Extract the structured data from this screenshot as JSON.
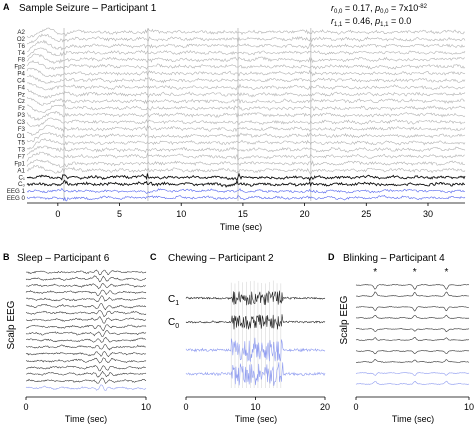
{
  "chart_data": [
    {
      "panel": "A",
      "type": "line",
      "title": "Sample Seizure – Participant 1",
      "xlabel": "Time (sec)",
      "xlim": [
        -2.5,
        33
      ],
      "xticks": [
        0,
        5,
        10,
        15,
        20,
        25,
        30
      ],
      "channels": [
        "A2",
        "O2",
        "T6",
        "T4",
        "F8",
        "Fp2",
        "P4",
        "C4",
        "F4",
        "Pz",
        "Cz",
        "Fz",
        "P3",
        "C3",
        "F3",
        "O1",
        "T5",
        "T3",
        "F7",
        "Fp1",
        "A1",
        "C₁",
        "C₀",
        "EEG 1",
        "EEG 0"
      ],
      "model_channels": [
        "C₁",
        "C₀"
      ],
      "eeg_channels": [
        "EEG 1",
        "EEG 0"
      ],
      "event_lines_x": [
        0.5,
        7.3,
        14.6,
        20.5
      ],
      "stats": [
        "r0,0 = 0.17, p0,0 = 7x10-82",
        "r1,1 = 0.46, p1,1 = 0.0"
      ]
    },
    {
      "panel": "B",
      "type": "line",
      "title": "Sleep – Participant 6",
      "ylabel": "Scalp EEG",
      "xlabel": "Time (sec)",
      "xlim": [
        0,
        10
      ],
      "xticks": [
        0,
        10
      ],
      "n_traces": 18
    },
    {
      "panel": "C",
      "type": "line",
      "title": "Chewing – Participant 2",
      "xlabel": "Time (sec)",
      "xlim": [
        0,
        20
      ],
      "xticks": [
        0,
        10,
        20
      ],
      "series_labels": [
        "C₁",
        "C₀"
      ],
      "burst_range": [
        6.5,
        14
      ]
    },
    {
      "panel": "D",
      "type": "line",
      "title": "Blinking – Participant 4",
      "ylabel": "Scalp EEG",
      "xlabel": "Time (sec)",
      "xlim": [
        0,
        10
      ],
      "xticks": [
        0,
        10
      ],
      "blink_times": [
        1.7,
        5.2,
        8.0
      ],
      "blink_marker": "*"
    }
  ],
  "labels": {
    "panel_a": "A",
    "panel_b": "B",
    "panel_c": "C",
    "panel_d": "D",
    "title_a": "Sample Seizure – Participant 1",
    "title_b": "Sleep – Participant 6",
    "title_c": "Chewing – Participant 2",
    "title_d": "Blinking – Participant 4",
    "stat_r00": "r",
    "stat_r00_sub": "0,0",
    "stat_r00_val": " = 0.17, ",
    "stat_p00": "p",
    "stat_p00_sub": "0,0",
    "stat_p00_val": " = 7x10",
    "stat_p00_exp": "-82",
    "stat_r11": "r",
    "stat_r11_sub": "1,1",
    "stat_r11_val": " = 0.46, ",
    "stat_p11": "p",
    "stat_p11_sub": "1,1",
    "stat_p11_val": " = 0.0",
    "ylabel_b": "Scalp EEG",
    "ylabel_d": "Scalp EEG",
    "c_label_1": "C",
    "c_label_1_sub": "1",
    "c_label_0": "C",
    "c_label_0_sub": "0",
    "xlabel_a": "Time (sec)",
    "xlabel_b": "Time (sec)",
    "xlabel_c": "Time (sec)",
    "xlabel_d": "Time (sec)"
  },
  "colors": {
    "gray_trace": "#b3b3b3",
    "black_trace": "#111111",
    "blue_trace": "#5566ee",
    "light_blue_trace": "#8f9cf0",
    "axis": "#000000"
  }
}
